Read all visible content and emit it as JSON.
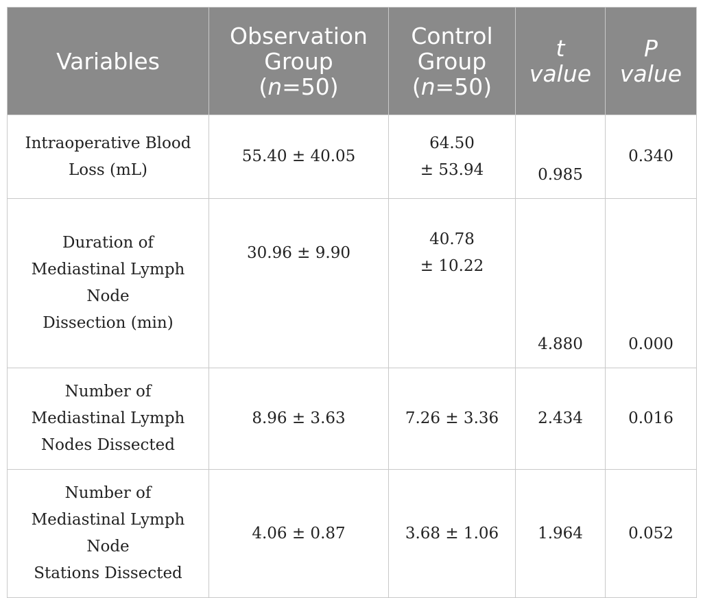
{
  "header": {
    "variables": "Variables",
    "observation_line1": "Observation",
    "observation_line2": "Group",
    "observation_n": "n",
    "observation_eq": "=50",
    "control_line1": "Control",
    "control_line2": "Group",
    "control_n": "n",
    "control_eq": "=50",
    "t_symbol": "t",
    "t_word": "value",
    "p_symbol": "P",
    "p_word": "value"
  },
  "rows": [
    {
      "variable_lines": [
        "Intraoperative Blood",
        "Loss (mL)"
      ],
      "observation": "55.40 ± 40.05",
      "control_lines": [
        "64.50",
        "± 53.94"
      ],
      "t_value": "0.985",
      "p_value": "0.340"
    },
    {
      "variable_lines": [
        "Duration of",
        "Mediastinal Lymph",
        "Node",
        "Dissection (min)"
      ],
      "observation": "30.96 ± 9.90",
      "control_lines": [
        "40.78",
        "± 10.22"
      ],
      "t_value": "4.880",
      "p_value": "0.000"
    },
    {
      "variable_lines": [
        "Number of",
        "Mediastinal Lymph",
        "Nodes Dissected"
      ],
      "observation": "8.96 ± 3.63",
      "control": "7.26 ± 3.36",
      "t_value": "2.434",
      "p_value": "0.016"
    },
    {
      "variable_lines": [
        "Number of",
        "Mediastinal Lymph",
        "Node",
        "Stations Dissected"
      ],
      "observation": "4.06 ± 0.87",
      "control": "3.68 ± 1.06",
      "t_value": "1.964",
      "p_value": "0.052"
    }
  ]
}
